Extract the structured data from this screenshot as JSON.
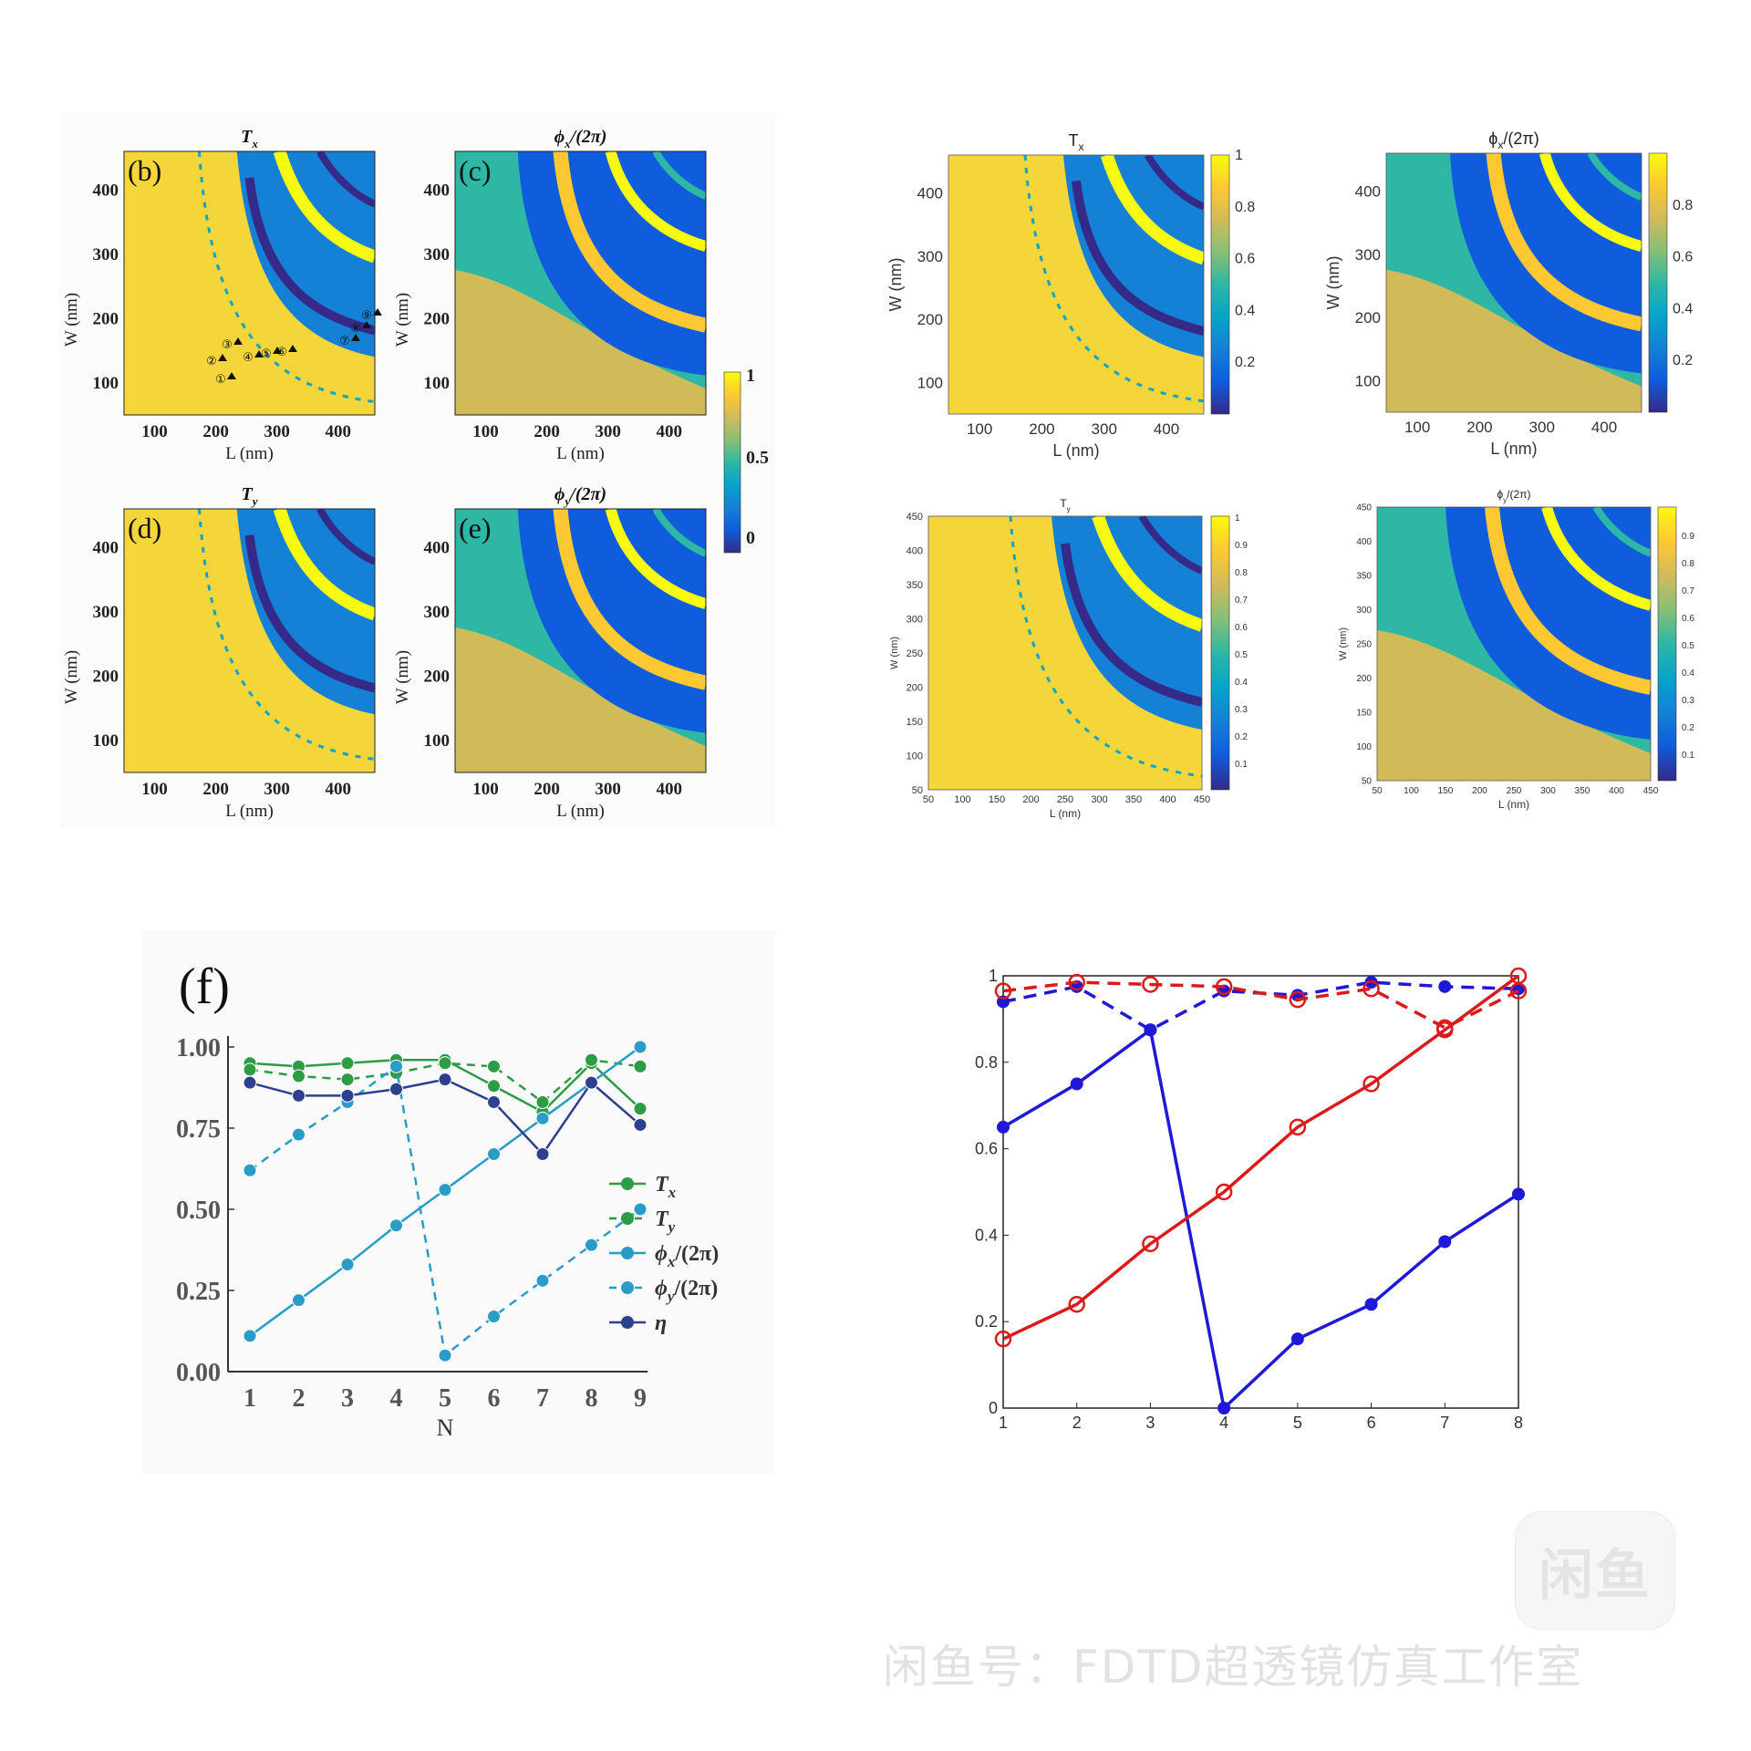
{
  "colors": {
    "parula": [
      "#352a87",
      "#0f5cdd",
      "#1481d6",
      "#06a4ca",
      "#2eb7a4",
      "#87bf77",
      "#d1bb59",
      "#fec832",
      "#f9fb0e"
    ]
  },
  "left_heatmaps": {
    "panels": [
      {
        "letter": "(b)",
        "title": "T",
        "sub": "x",
        "suffix": ""
      },
      {
        "letter": "(c)",
        "title": "ϕ",
        "sub": "x",
        "suffix": "/(2π)"
      },
      {
        "letter": "(d)",
        "title": "T",
        "sub": "y",
        "suffix": ""
      },
      {
        "letter": "(e)",
        "title": "ϕ",
        "sub": "y",
        "suffix": "/(2π)"
      }
    ],
    "x_ticks": [
      "100",
      "200",
      "300",
      "400"
    ],
    "y_ticks": [
      "100",
      "200",
      "300",
      "400"
    ],
    "xlabel": "L (nm)",
    "ylabel": "W (nm)",
    "colorbar_ticks": [
      "1",
      "0.5",
      "0"
    ],
    "markers": [
      "①",
      "②",
      "③",
      "④",
      "⑤",
      "⑥",
      "⑦",
      "⑧",
      "⑨"
    ]
  },
  "right_heatmaps": {
    "panels": [
      {
        "title": "T",
        "sub": "x",
        "suffix": "",
        "x_ticks": [
          "100",
          "200",
          "300",
          "400"
        ],
        "y_ticks": [
          "100",
          "200",
          "300",
          "400"
        ],
        "cb_ticks": [
          "1",
          "0.8",
          "0.6",
          "0.4",
          "0.2"
        ],
        "xlabel": "L (nm)",
        "ylabel": "W (nm)"
      },
      {
        "title": "ϕ",
        "sub": "x",
        "suffix": "/(2π)",
        "x_ticks": [
          "100",
          "200",
          "300",
          "400"
        ],
        "y_ticks": [
          "100",
          "200",
          "300",
          "400"
        ],
        "cb_ticks": [
          "0.8",
          "0.6",
          "0.4",
          "0.2"
        ],
        "xlabel": "L (nm)",
        "ylabel": "W (nm)"
      },
      {
        "title": "T",
        "sub": "y",
        "suffix": "",
        "x_ticks": [
          "50",
          "100",
          "150",
          "200",
          "250",
          "300",
          "350",
          "400",
          "450"
        ],
        "y_ticks": [
          "50",
          "100",
          "150",
          "200",
          "250",
          "300",
          "350",
          "400",
          "450"
        ],
        "cb_ticks": [
          "1",
          "0.9",
          "0.8",
          "0.7",
          "0.6",
          "0.5",
          "0.4",
          "0.3",
          "0.2",
          "0.1"
        ],
        "xlabel": "L (nm)",
        "ylabel": "W (nm)"
      },
      {
        "title": "ϕ",
        "sub": "y",
        "suffix": "/(2π)",
        "x_ticks": [
          "50",
          "100",
          "150",
          "200",
          "250",
          "300",
          "350",
          "400",
          "450"
        ],
        "y_ticks": [
          "50",
          "100",
          "150",
          "200",
          "250",
          "300",
          "350",
          "400",
          "450"
        ],
        "cb_ticks": [
          "0.9",
          "0.8",
          "0.7",
          "0.6",
          "0.5",
          "0.4",
          "0.3",
          "0.2",
          "0.1"
        ],
        "xlabel": "L (nm)",
        "ylabel": "W (nm)"
      }
    ]
  },
  "chart_data": [
    {
      "type": "line",
      "panel_letter": "(f)",
      "xlabel": "N",
      "x": [
        1,
        2,
        3,
        4,
        5,
        6,
        7,
        8,
        9
      ],
      "ylim": [
        0,
        1
      ],
      "y_ticks": [
        "0.00",
        "0.25",
        "0.50",
        "0.75",
        "1.00"
      ],
      "legend_position": "right",
      "series": [
        {
          "name": "Tx",
          "label_main": "T",
          "label_sub": "x",
          "label_suffix": "",
          "color": "#2e9b45",
          "dashed": false,
          "values": [
            0.95,
            0.94,
            0.95,
            0.96,
            0.96,
            0.88,
            0.8,
            0.95,
            0.81
          ]
        },
        {
          "name": "Ty",
          "label_main": "T",
          "label_sub": "y",
          "label_suffix": "",
          "color": "#2e9b45",
          "dashed": true,
          "values": [
            0.93,
            0.91,
            0.9,
            0.92,
            0.95,
            0.94,
            0.83,
            0.96,
            0.94
          ]
        },
        {
          "name": "ϕx/(2π)",
          "label_main": "ϕ",
          "label_sub": "x",
          "label_suffix": "/(2π)",
          "color": "#2a9cc8",
          "dashed": false,
          "values": [
            0.11,
            0.22,
            0.33,
            0.45,
            0.56,
            0.67,
            0.78,
            0.89,
            1.0
          ]
        },
        {
          "name": "ϕy/(2π)",
          "label_main": "ϕ",
          "label_sub": "y",
          "label_suffix": "/(2π)",
          "color": "#2a9cc8",
          "dashed": true,
          "values": [
            0.62,
            0.73,
            0.83,
            0.94,
            0.05,
            0.17,
            0.28,
            0.39,
            0.5
          ]
        },
        {
          "name": "η",
          "label_main": "η",
          "label_sub": "",
          "label_suffix": "",
          "color": "#2f3f8f",
          "dashed": false,
          "values": [
            0.89,
            0.85,
            0.85,
            0.87,
            0.9,
            0.83,
            0.67,
            0.89,
            0.76
          ]
        }
      ]
    },
    {
      "type": "line",
      "x": [
        1,
        2,
        3,
        4,
        5,
        6,
        7,
        8
      ],
      "ylim": [
        0,
        1
      ],
      "y_ticks": [
        "0",
        "0.2",
        "0.4",
        "0.6",
        "0.8",
        "1"
      ],
      "series": [
        {
          "color": "#1f18d6",
          "marker": "dot",
          "dashed": false,
          "values": [
            0.65,
            0.75,
            0.875,
            0.0,
            0.16,
            0.24,
            0.385,
            0.495
          ]
        },
        {
          "color": "#1f18d6",
          "marker": "dot",
          "dashed": true,
          "values": [
            0.94,
            0.975,
            0.875,
            0.965,
            0.955,
            0.985,
            0.975,
            0.97
          ]
        },
        {
          "color": "#dc1a1a",
          "marker": "circle",
          "dashed": false,
          "values": [
            0.16,
            0.24,
            0.38,
            0.5,
            0.65,
            0.75,
            0.875,
            1.0
          ]
        },
        {
          "color": "#dc1a1a",
          "marker": "circle",
          "dashed": true,
          "values": [
            0.965,
            0.985,
            0.98,
            0.975,
            0.945,
            0.97,
            0.88,
            0.965
          ]
        }
      ]
    }
  ],
  "watermark": {
    "logo": "闲鱼",
    "text": "闲鱼号：FDTD超透镜仿真工作室"
  }
}
